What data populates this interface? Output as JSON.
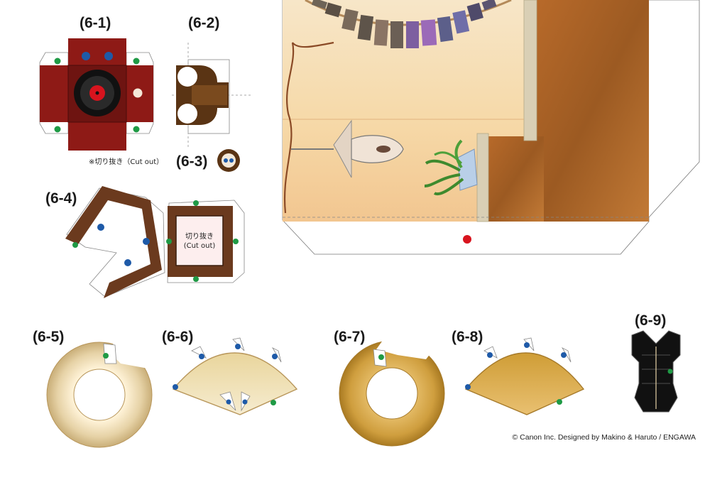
{
  "parts": [
    {
      "id": "p61",
      "label": "(6-1)"
    },
    {
      "id": "p62",
      "label": "(6-2)"
    },
    {
      "id": "p63",
      "label": "(6-3)"
    },
    {
      "id": "p64",
      "label": "(6-4)"
    },
    {
      "id": "p65",
      "label": "(6-5)"
    },
    {
      "id": "p66",
      "label": "(6-6)"
    },
    {
      "id": "p67",
      "label": "(6-7)"
    },
    {
      "id": "p68",
      "label": "(6-8)"
    },
    {
      "id": "p69",
      "label": "(6-9)"
    }
  ],
  "cutout_note": "※切り抜き（Cut out）",
  "cutout_box": {
    "line1": "切り抜き",
    "line2": "(Cut out)"
  },
  "copyright": "© Canon Inc. Designed by Makino & Haruto / ENGAWA",
  "colors": {
    "crimson": "#8e1a16",
    "dark_brown": "#5a3414",
    "tan_ring": "#d8c49a",
    "gold_ring": "#c79a3a",
    "glue_green": "#1f9a45",
    "guide_blue": "#1e5aa8",
    "mark_red": "#d8141e",
    "room_wall": "#f5dcb4",
    "room_floor": "#b86a2a"
  }
}
